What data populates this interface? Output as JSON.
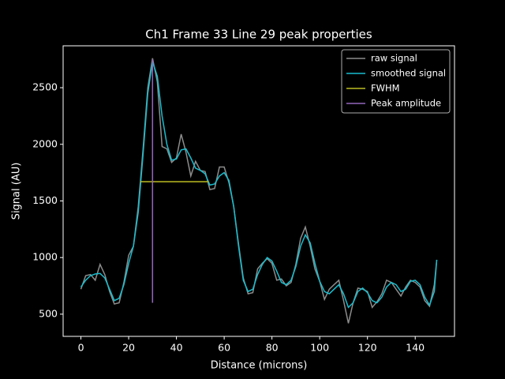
{
  "chart_data": {
    "type": "line",
    "title": "Ch1 Frame 33 Line 29 peak properties",
    "x_label": "Distance (microns)",
    "y_label": "Signal (AU)",
    "xlim": [
      -7.45,
      156.45
    ],
    "ylim": [
      304,
      2870
    ],
    "xticks": [
      0,
      20,
      40,
      60,
      80,
      100,
      120,
      140
    ],
    "yticks": [
      500,
      1000,
      1500,
      2000,
      2500
    ],
    "legend": "upper right",
    "series": [
      {
        "name": "raw signal",
        "color": "#8c8c8c",
        "x": [
          0,
          2,
          4,
          6,
          8,
          10,
          12,
          14,
          16,
          18,
          20,
          22,
          24,
          26,
          28,
          30,
          32,
          34,
          36,
          38,
          40,
          42,
          44,
          46,
          48,
          50,
          52,
          54,
          56,
          58,
          60,
          62,
          64,
          66,
          68,
          70,
          72,
          74,
          76,
          78,
          80,
          82,
          84,
          86,
          88,
          90,
          92,
          94,
          96,
          98,
          100,
          102,
          104,
          106,
          108,
          110,
          112,
          114,
          116,
          118,
          120,
          122,
          124,
          126,
          128,
          130,
          132,
          134,
          136,
          138,
          140,
          142,
          144,
          146,
          148,
          149
        ],
        "values": [
          720,
          840,
          850,
          800,
          940,
          850,
          700,
          590,
          600,
          780,
          1020,
          1100,
          1450,
          1950,
          2500,
          2760,
          2550,
          1980,
          1960,
          1840,
          1880,
          2090,
          1930,
          1720,
          1850,
          1770,
          1760,
          1600,
          1610,
          1800,
          1800,
          1660,
          1450,
          1120,
          820,
          680,
          690,
          900,
          950,
          990,
          950,
          800,
          810,
          750,
          780,
          940,
          1170,
          1270,
          1100,
          900,
          790,
          630,
          720,
          760,
          800,
          620,
          420,
          600,
          730,
          720,
          700,
          560,
          610,
          680,
          800,
          780,
          720,
          660,
          740,
          800,
          780,
          740,
          620,
          570,
          760,
          980
        ]
      },
      {
        "name": "smoothed signal",
        "color": "#17becf",
        "x": [
          0,
          2,
          4,
          6,
          8,
          10,
          12,
          14,
          16,
          18,
          20,
          22,
          24,
          26,
          28,
          30,
          32,
          34,
          36,
          38,
          40,
          42,
          44,
          46,
          48,
          50,
          52,
          54,
          56,
          58,
          60,
          62,
          64,
          66,
          68,
          70,
          72,
          74,
          76,
          78,
          80,
          82,
          84,
          86,
          88,
          90,
          92,
          94,
          96,
          98,
          100,
          102,
          104,
          106,
          108,
          110,
          112,
          114,
          116,
          118,
          120,
          122,
          124,
          126,
          128,
          130,
          132,
          134,
          136,
          138,
          140,
          142,
          144,
          146,
          148,
          149
        ],
        "values": [
          740,
          800,
          840,
          855,
          860,
          820,
          720,
          620,
          640,
          760,
          950,
          1100,
          1400,
          1900,
          2450,
          2730,
          2600,
          2250,
          2000,
          1860,
          1870,
          1950,
          1960,
          1880,
          1790,
          1770,
          1740,
          1640,
          1650,
          1720,
          1750,
          1680,
          1450,
          1100,
          800,
          700,
          720,
          850,
          940,
          1000,
          970,
          880,
          780,
          760,
          800,
          920,
          1100,
          1200,
          1130,
          950,
          790,
          700,
          680,
          720,
          760,
          680,
          560,
          600,
          700,
          730,
          690,
          620,
          600,
          650,
          740,
          780,
          760,
          700,
          720,
          790,
          800,
          760,
          650,
          580,
          700,
          980
        ]
      },
      {
        "name": "FWHM",
        "color": "#bcbd22",
        "x": [
          25,
          53.5
        ],
        "values": [
          1670,
          1670
        ]
      },
      {
        "name": "Peak amplitude",
        "color": "#9467bd",
        "x": [
          30,
          30
        ],
        "values": [
          600,
          2750
        ]
      }
    ]
  }
}
